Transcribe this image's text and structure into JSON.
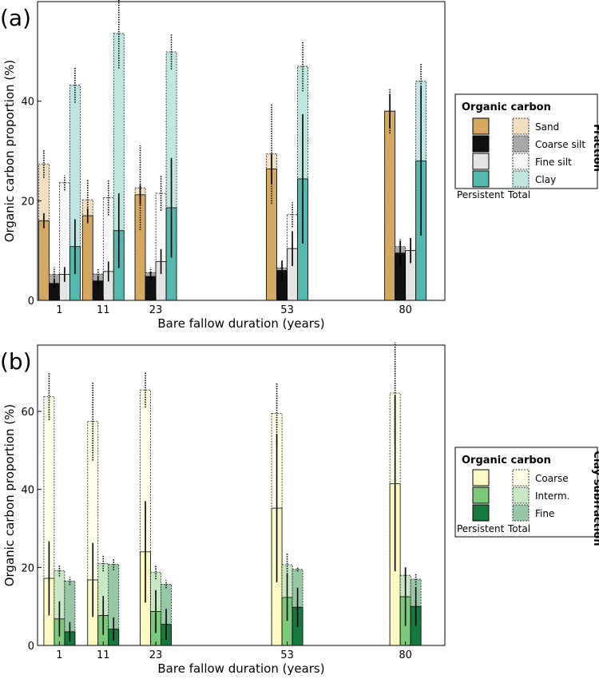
{
  "figure": {
    "panel_labels": [
      "(a)",
      "(b)"
    ]
  },
  "chart_data": [
    {
      "type": "bar",
      "panel": "(a)",
      "xlabel": "Bare fallow duration (years)",
      "ylabel": "Organic carbon proportion (%)",
      "x_ticks": [
        1,
        11,
        23,
        53,
        80
      ],
      "x_range": [
        -4,
        89
      ],
      "ylim": [
        0,
        60
      ],
      "y_ticks": [
        0,
        20,
        40
      ],
      "categories": [
        1,
        11,
        23,
        53,
        80
      ],
      "legend": {
        "title": "Organic carbon",
        "side_label": "Fraction",
        "column_labels": [
          "Persistent",
          "Total"
        ],
        "placement": "right"
      },
      "series": [
        {
          "name": "Sand",
          "persistent_color": "#d4a860",
          "total_color": "#f0dfc0",
          "total": [
            27.4,
            20.2,
            22.6,
            29.4,
            38.0
          ],
          "total_err": [
            2.8,
            4.0,
            8.5,
            10.0,
            4.5
          ],
          "persistent": [
            16.0,
            17.0,
            21.2,
            26.4,
            38.0
          ],
          "persistent_err": [
            1.5,
            1.5,
            2.0,
            3.0,
            3.5
          ]
        },
        {
          "name": "Coarse silt",
          "persistent_color": "#111111",
          "total_color": "#a8a8a8",
          "total": [
            5.2,
            5.3,
            5.6,
            6.5,
            10.8
          ],
          "total_err": [
            1.5,
            1.2,
            1.0,
            1.0,
            1.5
          ],
          "persistent": [
            3.4,
            3.9,
            4.8,
            6.0,
            9.5
          ],
          "persistent_err": [
            0.8,
            1.0,
            1.0,
            2.0,
            2.5
          ]
        },
        {
          "name": "Fine silt",
          "persistent_color": "#e4e4e4",
          "total_color": "#f7f7f7",
          "total": [
            23.6,
            20.6,
            21.5,
            17.2,
            10.0
          ],
          "total_err": [
            1.5,
            3.5,
            3.5,
            2.5,
            2.5
          ],
          "persistent": [
            5.2,
            5.8,
            7.8,
            10.4,
            10.0
          ],
          "persistent_err": [
            1.5,
            2.0,
            2.5,
            3.5,
            2.5
          ]
        },
        {
          "name": "Clay",
          "persistent_color": "#55b8ae",
          "total_color": "#bfe5e0",
          "total": [
            43.2,
            53.6,
            49.9,
            47.0,
            44.0
          ],
          "total_err": [
            3.5,
            7.0,
            3.5,
            5.0,
            3.5
          ],
          "persistent": [
            10.8,
            14.0,
            18.6,
            24.4,
            28.0
          ],
          "persistent_err": [
            5.5,
            7.5,
            10.0,
            13.0,
            15.0
          ]
        }
      ]
    },
    {
      "type": "bar",
      "panel": "(b)",
      "xlabel": "Bare fallow duration (years)",
      "ylabel": "Organic carbon proportion (%)",
      "x_ticks": [
        1,
        11,
        23,
        53,
        80
      ],
      "x_range": [
        -4,
        89
      ],
      "ylim": [
        0,
        77
      ],
      "y_ticks": [
        0,
        20,
        40,
        60
      ],
      "categories": [
        1,
        11,
        23,
        53,
        80
      ],
      "legend": {
        "title": "Organic carbon",
        "side_label": "Clay subfraction",
        "column_labels": [
          "Persistent",
          "Total"
        ],
        "placement": "right"
      },
      "series": [
        {
          "name": "Coarse",
          "persistent_color": "#fafac2",
          "total_color": "#fdfde8",
          "total": [
            63.8,
            57.4,
            65.5,
            59.5,
            64.7
          ],
          "total_err": [
            6.0,
            10.0,
            4.5,
            8.0,
            13.0
          ],
          "persistent": [
            17.2,
            16.8,
            24.0,
            35.2,
            41.5
          ],
          "persistent_err": [
            9.5,
            9.5,
            13.0,
            19.0,
            22.5
          ]
        },
        {
          "name": "Interm.",
          "persistent_color": "#7cc97a",
          "total_color": "#c8e8c4",
          "total": [
            19.2,
            21.0,
            18.8,
            20.7,
            18.0
          ],
          "total_err": [
            1.5,
            2.0,
            1.8,
            3.0,
            2.0
          ],
          "persistent": [
            6.8,
            7.7,
            8.7,
            12.3,
            12.5
          ],
          "persistent_err": [
            4.5,
            5.0,
            5.5,
            6.0,
            7.5
          ]
        },
        {
          "name": "Fine",
          "persistent_color": "#157a3e",
          "total_color": "#97c8a6",
          "total": [
            16.5,
            20.8,
            15.7,
            19.5,
            17.0
          ],
          "total_err": [
            1.0,
            1.5,
            1.0,
            0.5,
            1.5
          ],
          "persistent": [
            3.5,
            4.2,
            5.4,
            9.8,
            10.0
          ],
          "persistent_err": [
            2.5,
            3.0,
            4.0,
            5.0,
            5.0
          ]
        }
      ]
    }
  ]
}
